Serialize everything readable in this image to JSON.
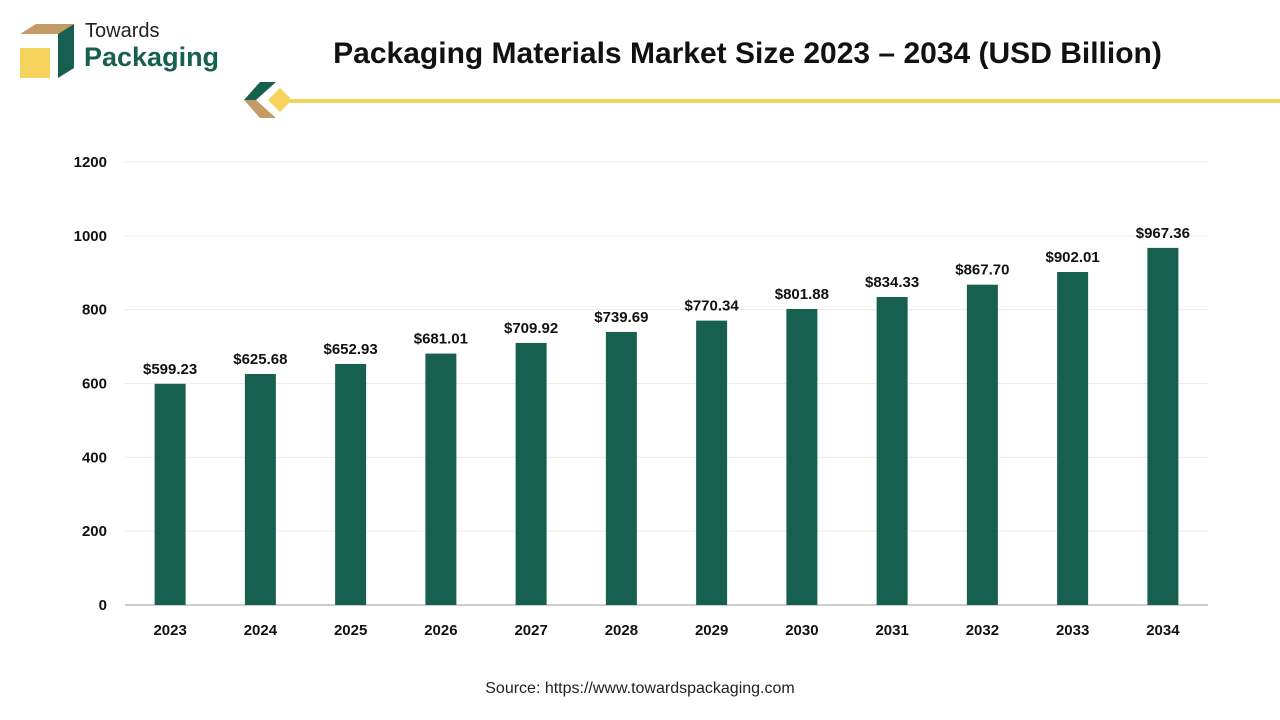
{
  "brand": {
    "line1": "Towards",
    "line2": "Packaging"
  },
  "colors": {
    "bar": "#17604f",
    "accent_yellow": "#f5d25c",
    "accent_tan": "#c49a66"
  },
  "source": "Source: https://www.towardspackaging.com",
  "chart_data": {
    "type": "bar",
    "title": "Packaging Materials Market Size 2023 – 2034 (USD Billion)",
    "categories": [
      "2023",
      "2024",
      "2025",
      "2026",
      "2027",
      "2028",
      "2029",
      "2030",
      "2031",
      "2032",
      "2033",
      "2034"
    ],
    "values": [
      599.23,
      625.68,
      652.93,
      681.01,
      709.92,
      739.69,
      770.34,
      801.88,
      834.33,
      867.7,
      902.01,
      967.36
    ],
    "data_labels": [
      "$599.23",
      "$625.68",
      "$652.93",
      "$681.01",
      "$709.92",
      "$739.69",
      "$770.34",
      "$801.88",
      "$834.33",
      "$867.70",
      "$902.01",
      "$967.36"
    ],
    "yticks": [
      0,
      200,
      400,
      600,
      800,
      1000,
      1200
    ],
    "ylim": [
      0,
      1200
    ],
    "grid": true,
    "xlabel": "",
    "ylabel": ""
  }
}
